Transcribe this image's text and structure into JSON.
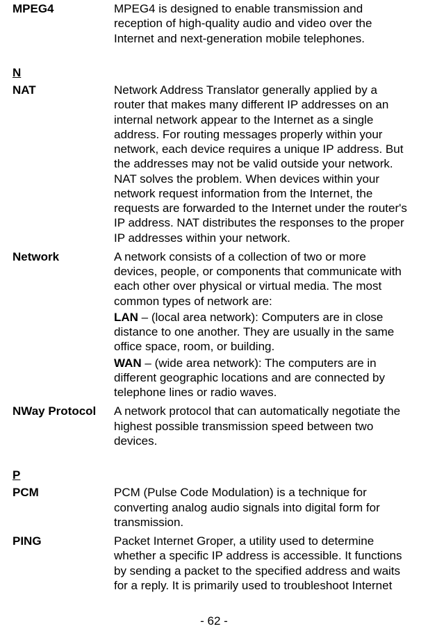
{
  "entries": {
    "mpeg4": {
      "term": "MPEG4",
      "def": "MPEG4 is designed to enable transmission and reception of high-quality audio and video over the Internet and next-generation mobile telephones."
    },
    "section_n": {
      "label": "N"
    },
    "nat": {
      "term": "NAT",
      "def": "Network Address Translator generally applied by a router that makes many different IP addresses on an internal network appear to the Internet as a single address. For routing messages properly within your network, each device requires a unique IP address. But the addresses may not be valid outside your network. NAT solves the problem. When devices within your network request information from the Internet, the requests are forwarded to the Internet under the router's IP address. NAT distributes the responses to the proper IP addresses within your network."
    },
    "network": {
      "term": "Network",
      "intro": "A network consists of a collection of two or more devices, people, or components that communicate with each other over physical or virtual media. The most common types of network are:",
      "lan_label": "LAN",
      "lan_text": " – (local area network): Computers are in close distance to one another. They are usually in the same office space, room, or building.",
      "wan_label": "WAN",
      "wan_text": " – (wide area network): The computers are in different geographic locations and are connected by telephone lines or radio waves."
    },
    "nway": {
      "term": "NWay Protocol",
      "def": "A network protocol that can automatically negotiate the highest possible transmission speed between two devices."
    },
    "section_p": {
      "label": "P"
    },
    "pcm": {
      "term": "PCM",
      "def": "PCM (Pulse Code Modulation) is a technique for converting analog audio signals into digital form for transmission."
    },
    "ping": {
      "term": "PING",
      "def": "Packet Internet Groper, a utility used to determine whether a specific IP address is accessible. It functions by sending a packet to the specified address and waits for a reply. It is primarily used to troubleshoot Internet"
    }
  },
  "page_number": "- 62 -"
}
